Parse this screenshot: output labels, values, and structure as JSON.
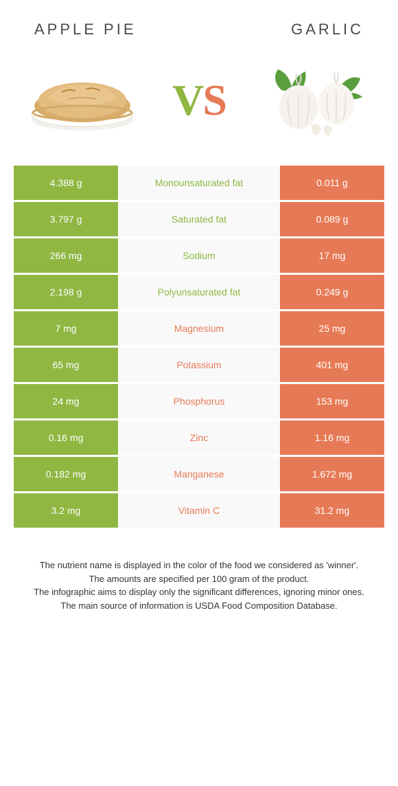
{
  "left_food": "Apple Pie",
  "right_food": "Garlic",
  "vs_label": "VS",
  "colors": {
    "left": "#8fb742",
    "right": "#e77a56",
    "mid_bg": "#f9f9f9",
    "vs_left": "#8fb742",
    "vs_right": "#e77a56"
  },
  "rows": [
    {
      "name": "Monounsaturated fat",
      "left": "4.388 g",
      "right": "0.011 g",
      "winner": "left"
    },
    {
      "name": "Saturated fat",
      "left": "3.797 g",
      "right": "0.089 g",
      "winner": "left"
    },
    {
      "name": "Sodium",
      "left": "266 mg",
      "right": "17 mg",
      "winner": "left"
    },
    {
      "name": "Polyunsaturated fat",
      "left": "2.198 g",
      "right": "0.249 g",
      "winner": "left"
    },
    {
      "name": "Magnesium",
      "left": "7 mg",
      "right": "25 mg",
      "winner": "right"
    },
    {
      "name": "Potassium",
      "left": "65 mg",
      "right": "401 mg",
      "winner": "right"
    },
    {
      "name": "Phosphorus",
      "left": "24 mg",
      "right": "153 mg",
      "winner": "right"
    },
    {
      "name": "Zinc",
      "left": "0.16 mg",
      "right": "1.16 mg",
      "winner": "right"
    },
    {
      "name": "Manganese",
      "left": "0.182 mg",
      "right": "1.672 mg",
      "winner": "right"
    },
    {
      "name": "Vitamin C",
      "left": "3.2 mg",
      "right": "31.2 mg",
      "winner": "right"
    }
  ],
  "footer": [
    "The nutrient name is displayed in the color of the food we considered as 'winner'.",
    "The amounts are specified per 100 gram of the product.",
    "The infographic aims to display only the significant differences, ignoring minor ones.",
    "The main source of information is USDA Food Composition Database."
  ]
}
